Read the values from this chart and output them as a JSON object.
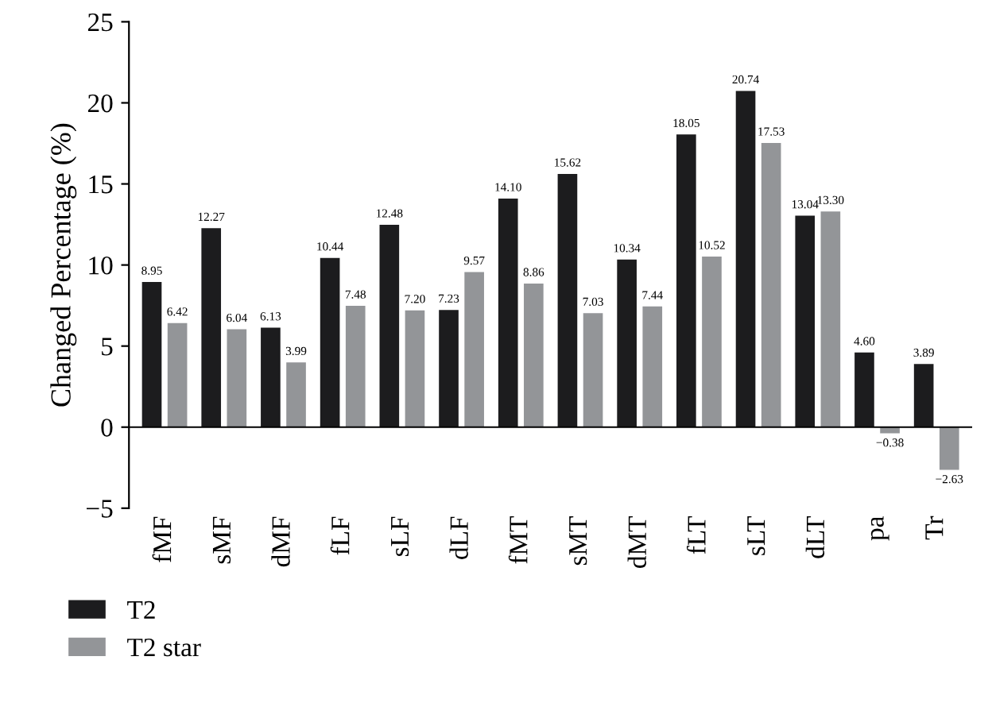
{
  "chart_data": {
    "type": "bar",
    "ylabel": "Changed Percentage (%)",
    "categories": [
      "fMF",
      "sMF",
      "dMF",
      "fLF",
      "sLF",
      "dLF",
      "fMT",
      "sMT",
      "dMT",
      "fLT",
      "sLT",
      "dLT",
      "pa",
      "Tr"
    ],
    "series": [
      {
        "name": "T2",
        "color": "#1c1c1e",
        "values": [
          8.95,
          12.27,
          6.13,
          10.44,
          12.48,
          7.23,
          14.1,
          15.62,
          10.34,
          18.05,
          20.74,
          13.04,
          4.6,
          3.89
        ],
        "value_labels": [
          "8.95",
          "12.27",
          "6.13",
          "10.44",
          "12.48",
          "7.23",
          "14.10",
          "15.62",
          "10.34",
          "18.05",
          "20.74",
          "13.04",
          "4.60",
          "3.89"
        ]
      },
      {
        "name": "T2 star",
        "color": "#939598",
        "values": [
          6.42,
          6.04,
          3.99,
          7.48,
          7.2,
          9.57,
          8.86,
          7.03,
          7.44,
          10.52,
          17.53,
          13.3,
          -0.38,
          -2.63
        ],
        "value_labels": [
          "6.42",
          "6.04",
          "3.99",
          "7.48",
          "7.20",
          "9.57",
          "8.86",
          "7.03",
          "7.44",
          "10.52",
          "17.53",
          "13.30",
          "−0.38",
          "−2.63"
        ]
      }
    ],
    "ylim": [
      -5,
      25
    ],
    "yticks": [
      {
        "value": -5,
        "label": "−5"
      },
      0,
      5,
      10,
      15,
      20,
      25
    ],
    "ref_lines": [
      {
        "axis": "y",
        "value": 0,
        "color": "#000000"
      }
    ],
    "grid": false,
    "legend": "bottom left"
  }
}
